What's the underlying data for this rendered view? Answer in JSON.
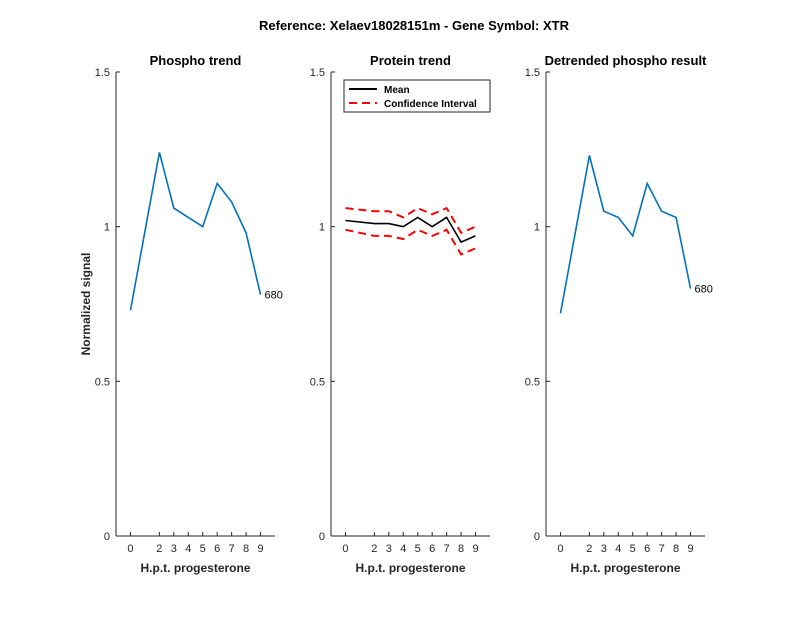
{
  "figure_title": "Reference:  Xelaev18028151m - Gene Symbol:  XTR",
  "colors": {
    "phospho": "#0072BD",
    "mean": "#000000",
    "ci": "#FF0000",
    "axis": "#262626"
  },
  "chart_data": [
    {
      "type": "line",
      "title": "Phospho trend",
      "xlabel": "H.p.t. progesterone",
      "ylabel": "Normalized signal",
      "x": [
        0,
        2,
        3,
        4,
        5,
        6,
        7,
        8,
        9
      ],
      "xticks": [
        "0",
        "2",
        "3",
        "4",
        "5",
        "6",
        "7",
        "8",
        "9"
      ],
      "yticks": [
        "0",
        "0.5",
        "1",
        "1.5"
      ],
      "ylim": [
        0,
        1.5
      ],
      "series": [
        {
          "values": [
            0.73,
            1.24,
            1.06,
            1.03,
            1.0,
            1.14,
            1.08,
            0.98,
            0.78
          ],
          "color": "#0072BD",
          "style": "solid"
        }
      ],
      "annotation": {
        "text": "680",
        "x": 9,
        "y": 0.78
      }
    },
    {
      "type": "line",
      "title": "Protein trend",
      "xlabel": "H.p.t. progesterone",
      "x": [
        0,
        2,
        3,
        4,
        5,
        6,
        7,
        8,
        9
      ],
      "xticks": [
        "0",
        "2",
        "3",
        "4",
        "5",
        "6",
        "7",
        "8",
        "9"
      ],
      "yticks": [
        "0",
        "0.5",
        "1",
        "1.5"
      ],
      "ylim": [
        0,
        1.5
      ],
      "legend": {
        "placement": "top-left",
        "entries": [
          "Mean",
          "Confidence Interval"
        ]
      },
      "series": [
        {
          "name": "Mean",
          "values": [
            1.02,
            1.01,
            1.01,
            1.0,
            1.03,
            1.0,
            1.03,
            0.95,
            0.97
          ],
          "color": "#000000",
          "style": "solid"
        },
        {
          "name": "Confidence Interval",
          "values": [
            1.06,
            1.05,
            1.05,
            1.03,
            1.06,
            1.04,
            1.06,
            0.98,
            1.0
          ],
          "color": "#FF0000",
          "style": "dashed"
        },
        {
          "name": "Confidence Interval",
          "values": [
            0.99,
            0.97,
            0.97,
            0.96,
            0.99,
            0.97,
            0.99,
            0.91,
            0.93
          ],
          "color": "#FF0000",
          "style": "dashed"
        }
      ]
    },
    {
      "type": "line",
      "title": "Detrended phospho result",
      "xlabel": "H.p.t. progesterone",
      "x": [
        0,
        2,
        3,
        4,
        5,
        6,
        7,
        8,
        9
      ],
      "xticks": [
        "0",
        "2",
        "3",
        "4",
        "5",
        "6",
        "7",
        "8",
        "9"
      ],
      "yticks": [
        "0",
        "0.5",
        "1",
        "1.5"
      ],
      "ylim": [
        0,
        1.5
      ],
      "series": [
        {
          "values": [
            0.72,
            1.23,
            1.05,
            1.03,
            0.97,
            1.14,
            1.05,
            1.03,
            0.8
          ],
          "color": "#0072BD",
          "style": "solid"
        }
      ],
      "annotation": {
        "text": "680",
        "x": 9,
        "y": 0.8
      }
    }
  ]
}
